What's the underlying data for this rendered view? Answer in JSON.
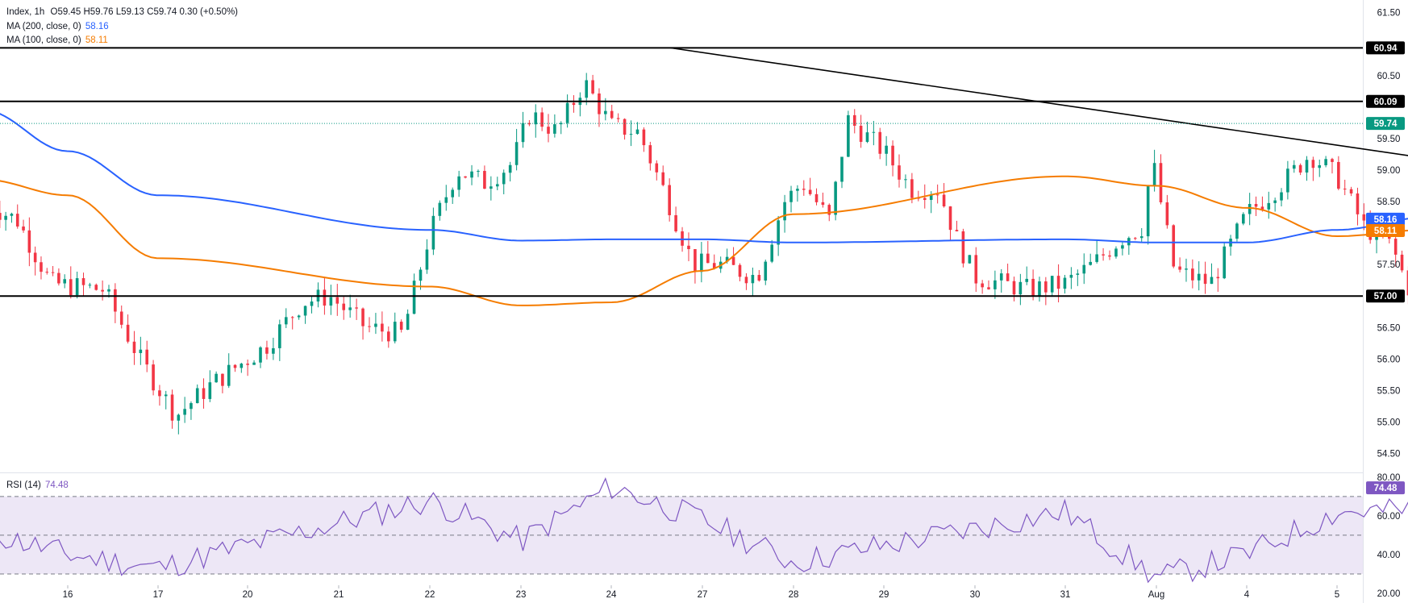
{
  "header": {
    "symbol": "Index, 1h",
    "open_label": "O",
    "open": "59.45",
    "high_label": "H",
    "high": "59.76",
    "low_label": "L",
    "low": "59.13",
    "close_label": "C",
    "close": "59.74",
    "change": "0.30 (+0.50%)",
    "ma200_label": "MA (200, close, 0)",
    "ma200_value": "58.16",
    "ma100_label": "MA (100, close, 0)",
    "ma100_value": "58.11",
    "rsi_label": "RSI (14)",
    "rsi_value": "74.48"
  },
  "colors": {
    "up": "#089981",
    "down": "#f23645",
    "ma200": "#2962ff",
    "ma100": "#f57c00",
    "rsi": "#7e57c2",
    "rsi_band": "#ede7f6",
    "price_line": "#089981",
    "level": "#000000",
    "axis_text": "#131722"
  },
  "chart_data": {
    "type": "candlestick",
    "timeframe": "1h",
    "x_ticks": [
      "16",
      "17",
      "20",
      "21",
      "22",
      "23",
      "24",
      "27",
      "28",
      "29",
      "30",
      "31",
      "Aug",
      "4",
      "5"
    ],
    "price_axis_ticks": [
      "61.50",
      "60.50",
      "59.50",
      "59.00",
      "58.50",
      "57.50",
      "56.50",
      "56.00",
      "55.50",
      "55.00",
      "54.50"
    ],
    "ylim": [
      54.2,
      61.7
    ],
    "horizontal_levels": [
      60.94,
      60.09,
      57.0
    ],
    "level_labels": [
      "60.94",
      "60.09",
      "57.00"
    ],
    "current_price": 59.74,
    "current_price_label": "59.74",
    "ma200_last_label": "58.16",
    "ma100_last_label": "58.11",
    "trendline": {
      "from": {
        "day": "22",
        "price": 60.94
      },
      "to": {
        "day": "4",
        "price": 58.6
      }
    },
    "price_anchors_by_session": [
      {
        "session": "15",
        "close": 58.5
      },
      {
        "session": "16",
        "close": 57.2
      },
      {
        "session": "17",
        "close": 55.2
      },
      {
        "session": "20",
        "close": 56.4
      },
      {
        "session": "21",
        "close": 57.9
      },
      {
        "session": "22",
        "close": 59.3
      },
      {
        "session": "23",
        "close": 59.6
      },
      {
        "session": "24",
        "close": 57.6
      },
      {
        "session": "27",
        "close": 59.6
      },
      {
        "session": "28",
        "close": 57.4
      },
      {
        "session": "29",
        "close": 57.2
      },
      {
        "session": "30",
        "close": 58.2
      },
      {
        "session": "31",
        "close": 58.8
      },
      {
        "session": "Aug",
        "close": 57.7
      },
      {
        "session": "4",
        "close": 58.7
      },
      {
        "session": "5",
        "close": 59.74
      }
    ],
    "moving_averages": [
      {
        "name": "MA (200, close, 0)",
        "last": 58.16,
        "path": [
          [
            15,
            59.95
          ],
          [
            16,
            59.3
          ],
          [
            17,
            58.6
          ],
          [
            20,
            58.05
          ],
          [
            21,
            57.88
          ],
          [
            22,
            57.9
          ],
          [
            23,
            57.9
          ],
          [
            24,
            57.85
          ],
          [
            27,
            57.9
          ],
          [
            28,
            57.85
          ],
          [
            29,
            57.85
          ],
          [
            30,
            58.05
          ],
          [
            31,
            58.25
          ],
          [
            32,
            58.35
          ],
          [
            33,
            58.3
          ],
          [
            33.6,
            58.16
          ]
        ]
      },
      {
        "name": "MA (100, close, 0)",
        "last": 58.11,
        "path": [
          [
            15,
            58.85
          ],
          [
            16,
            58.6
          ],
          [
            17,
            57.6
          ],
          [
            20,
            57.15
          ],
          [
            21,
            56.85
          ],
          [
            22,
            56.9
          ],
          [
            23,
            57.4
          ],
          [
            24,
            58.3
          ],
          [
            27,
            58.9
          ],
          [
            28,
            58.75
          ],
          [
            29,
            58.4
          ],
          [
            30,
            57.95
          ],
          [
            31,
            58.05
          ],
          [
            32,
            57.85
          ],
          [
            33,
            57.9
          ],
          [
            33.6,
            58.11
          ]
        ]
      }
    ],
    "rsi": {
      "name": "RSI (14)",
      "last": 74.48,
      "last_label": "74.48",
      "ylim": [
        15,
        82
      ],
      "levels": [
        70,
        50,
        30
      ],
      "axis_ticks": [
        "80.00",
        "60.00",
        "40.00",
        "20.00"
      ],
      "anchors": [
        [
          15,
          52
        ],
        [
          16,
          40
        ],
        [
          17,
          33
        ],
        [
          20,
          68
        ],
        [
          21,
          47
        ],
        [
          22,
          75
        ],
        [
          23,
          58
        ],
        [
          24,
          36
        ],
        [
          27,
          62
        ],
        [
          28,
          28
        ],
        [
          29,
          40
        ],
        [
          30,
          62
        ],
        [
          31,
          63
        ],
        [
          32,
          45
        ],
        [
          33,
          58
        ],
        [
          33.6,
          74.48
        ]
      ]
    }
  }
}
